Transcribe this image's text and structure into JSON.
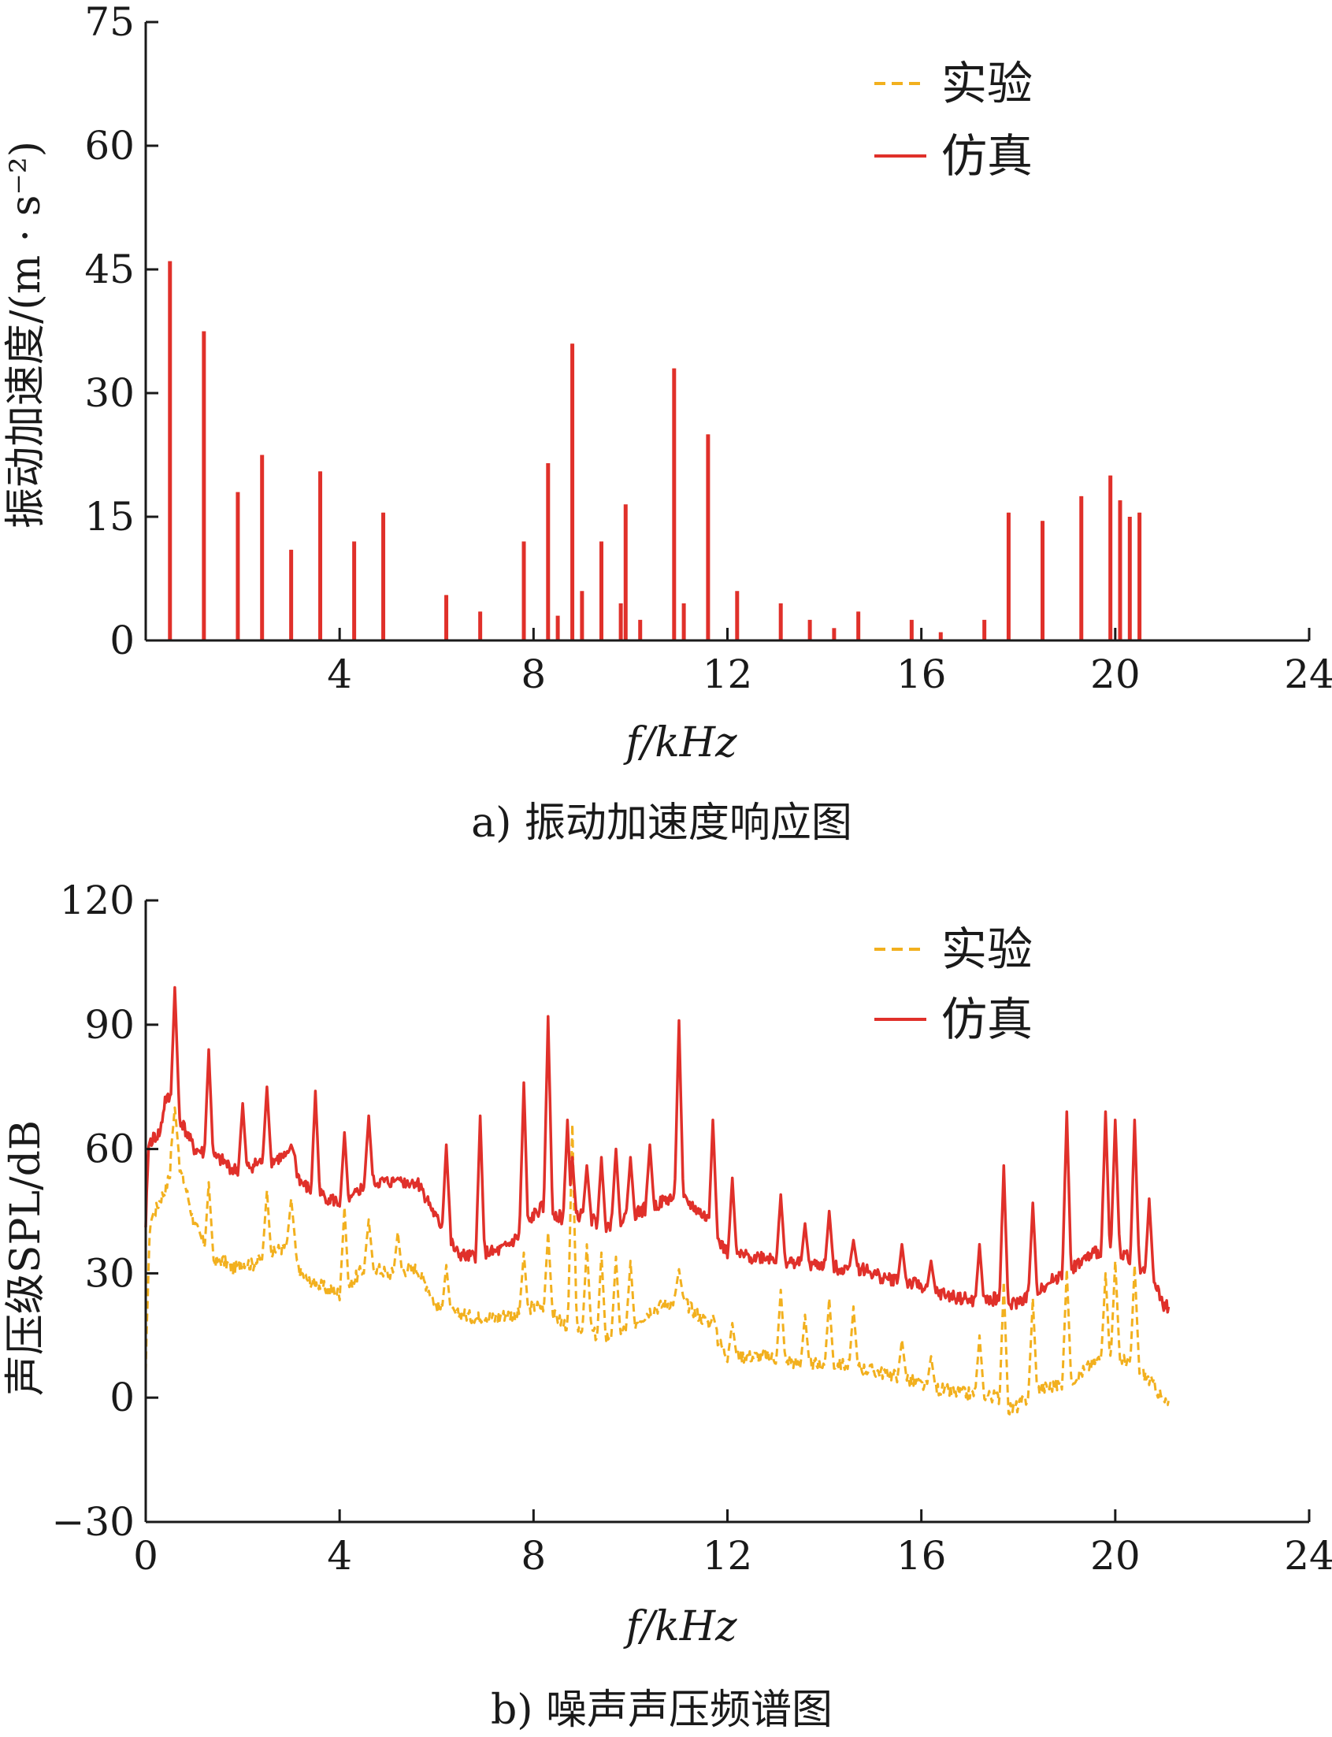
{
  "chart_data": [
    {
      "type": "line",
      "caption": "a) 振动加速度响应图",
      "title": "",
      "xlabel": "f/kHz",
      "ylabel": "振动加速度/(m · s⁻²)",
      "xlim": [
        0,
        24
      ],
      "ylim": [
        0,
        75
      ],
      "xticks": [
        4,
        8,
        12,
        16,
        20,
        24
      ],
      "yticks": [
        0,
        15,
        30,
        45,
        60,
        75
      ],
      "grid": false,
      "legend_position": "top-right",
      "colors": {
        "experiment": "#f2b01e",
        "simulation": "#e0302a"
      },
      "series": [
        {
          "name": "实验",
          "style": "dashed",
          "peaks_x": [
            0.5,
            1.2,
            1.9,
            2.4,
            3.0,
            3.6,
            4.3,
            4.9,
            6.2,
            6.9,
            7.8,
            8.3,
            8.5,
            8.8,
            9.0,
            9.4,
            9.8,
            9.9,
            10.2,
            10.9,
            11.1,
            11.6,
            12.2,
            13.1,
            13.7,
            14.2,
            14.7,
            15.8,
            16.4,
            17.3,
            17.8,
            18.5,
            19.3,
            19.9,
            20.1,
            20.3,
            20.5
          ],
          "peaks_y": [
            46,
            37.5,
            18,
            22.5,
            11,
            20.5,
            12,
            15.5,
            5.5,
            3.5,
            12,
            21.5,
            3,
            36,
            6,
            12,
            4.5,
            16.5,
            2.5,
            33,
            4.5,
            25,
            6,
            4.5,
            2.5,
            1.5,
            3.5,
            2.5,
            1,
            2.5,
            15.5,
            14.5,
            17.5,
            20,
            17,
            15,
            15.5
          ]
        },
        {
          "name": "仿真",
          "style": "solid",
          "peaks_x": [
            0.5,
            1.2,
            1.9,
            2.4,
            3.0,
            3.6,
            4.3,
            4.9,
            6.2,
            6.9,
            7.8,
            8.3,
            8.5,
            8.8,
            9.0,
            9.4,
            9.8,
            9.9,
            10.2,
            10.9,
            11.1,
            11.6,
            12.2,
            13.1,
            13.7,
            14.2,
            14.7,
            15.8,
            16.4,
            17.3,
            17.8,
            18.5,
            19.3,
            19.9,
            20.1,
            20.3,
            20.5
          ],
          "peaks_y": [
            46,
            37.5,
            18,
            22.5,
            11,
            20.5,
            12,
            15.5,
            5.5,
            3.5,
            12,
            21.5,
            3,
            36,
            6,
            12,
            4.5,
            16.5,
            2.5,
            33,
            4.5,
            25,
            6,
            4.5,
            2.5,
            1.5,
            3.5,
            2.5,
            1,
            2.5,
            15.5,
            14.5,
            17.5,
            20,
            17,
            15,
            15.5
          ]
        }
      ]
    },
    {
      "type": "line",
      "caption": "b) 噪声声压频谱图",
      "title": "",
      "xlabel": "f/kHz",
      "ylabel": "声压级SPL/dB",
      "xlim": [
        0,
        24
      ],
      "ylim": [
        -30,
        120
      ],
      "xticks": [
        0,
        4,
        8,
        12,
        16,
        20,
        24
      ],
      "yticks": [
        -30,
        0,
        30,
        60,
        90,
        120
      ],
      "grid": false,
      "legend_position": "top-right",
      "colors": {
        "experiment": "#f2b01e",
        "simulation": "#e0302a"
      },
      "series": [
        {
          "name": "实验",
          "style": "dashed",
          "x": [
            0,
            0.05,
            0.1,
            0.2,
            0.3,
            0.4,
            0.5,
            0.6,
            0.8,
            1.0,
            1.2,
            1.4,
            1.6,
            1.8,
            2.0,
            2.2,
            2.4,
            2.6,
            2.8,
            3.0,
            3.2,
            3.4,
            3.6,
            3.8,
            4.0,
            4.2,
            4.4,
            4.6,
            4.8,
            5.0,
            5.2,
            5.4,
            5.6,
            5.8,
            6.0,
            6.2,
            6.4,
            6.6,
            6.8,
            7.0,
            7.2,
            7.4,
            7.6,
            7.8,
            8.0,
            8.2,
            8.4,
            8.6,
            8.8,
            9.0,
            9.2,
            9.4,
            9.6,
            9.8,
            10.0,
            10.2,
            10.4,
            10.6,
            10.8,
            11.0,
            11.2,
            11.4,
            11.6,
            11.8,
            12.0,
            12.4,
            12.8,
            13.2,
            13.6,
            14.0,
            14.4,
            14.8,
            15.2,
            15.6,
            16.0,
            16.4,
            16.8,
            17.2,
            17.6,
            17.8,
            18.0,
            18.4,
            18.8,
            19.2,
            19.6,
            20.0,
            20.4,
            20.8,
            21.0,
            21.1
          ],
          "y": [
            5,
            30,
            43,
            45,
            48,
            50,
            54,
            58,
            52,
            42,
            37,
            33,
            33,
            31,
            33,
            32,
            34,
            35,
            36,
            37,
            30,
            28,
            27,
            26,
            25,
            27,
            30,
            32,
            31,
            30,
            30,
            31,
            31,
            27,
            22,
            21,
            20,
            20,
            19,
            20,
            19,
            20,
            20,
            21,
            22,
            22,
            20,
            18,
            17,
            17,
            16,
            14,
            15,
            16,
            17,
            19,
            21,
            22,
            23,
            24,
            22,
            20,
            18,
            14,
            10,
            10,
            10,
            9,
            8,
            8,
            8,
            7,
            6,
            5,
            3,
            2,
            1,
            1,
            0,
            -3,
            -2,
            2,
            3,
            5,
            9,
            10,
            8,
            3,
            -1,
            -2
          ]
        },
        {
          "name": "仿真",
          "style": "solid",
          "x": [
            0,
            0.05,
            0.1,
            0.2,
            0.3,
            0.4,
            0.5,
            0.6,
            0.8,
            1.0,
            1.2,
            1.4,
            1.6,
            1.8,
            2.0,
            2.2,
            2.4,
            2.6,
            2.8,
            3.0,
            3.2,
            3.4,
            3.6,
            3.8,
            4.0,
            4.2,
            4.4,
            4.6,
            4.8,
            5.0,
            5.2,
            5.4,
            5.6,
            5.8,
            6.0,
            6.2,
            6.4,
            6.6,
            6.8,
            7.0,
            7.2,
            7.4,
            7.6,
            7.8,
            8.0,
            8.2,
            8.4,
            8.6,
            8.8,
            9.0,
            9.2,
            9.4,
            9.6,
            9.8,
            10.0,
            10.2,
            10.4,
            10.6,
            10.8,
            11.0,
            11.2,
            11.4,
            11.6,
            11.8,
            12.0,
            12.4,
            12.8,
            13.2,
            13.6,
            14.0,
            14.4,
            14.8,
            15.2,
            15.6,
            16.0,
            16.4,
            16.8,
            17.2,
            17.6,
            17.8,
            18.0,
            18.4,
            18.8,
            19.2,
            19.6,
            20.0,
            20.4,
            20.8,
            21.0,
            21.1
          ],
          "y": [
            40,
            60,
            62,
            63,
            64,
            72,
            72,
            70,
            65,
            60,
            59,
            58,
            57,
            55,
            55,
            56,
            57,
            57,
            58,
            58,
            52,
            50,
            49,
            48,
            47,
            47,
            50,
            52,
            52,
            52,
            52,
            52,
            52,
            48,
            43,
            40,
            35,
            34,
            34,
            35,
            35,
            36,
            38,
            40,
            44,
            46,
            45,
            43,
            43,
            44,
            43,
            41,
            42,
            43,
            44,
            45,
            46,
            47,
            48,
            48,
            47,
            45,
            43,
            38,
            35,
            34,
            34,
            33,
            32,
            32,
            31,
            31,
            29,
            28,
            27,
            25,
            24,
            23,
            24,
            22,
            23,
            26,
            29,
            32,
            35,
            36,
            33,
            28,
            22,
            22
          ]
        }
      ],
      "simulation_spikes": {
        "x": [
          0.6,
          1.3,
          2.0,
          2.5,
          3.0,
          3.5,
          4.1,
          4.6,
          5.2,
          5.6,
          6.2,
          6.9,
          7.8,
          8.3,
          8.7,
          8.8,
          9.1,
          9.4,
          9.7,
          10.0,
          10.4,
          11.0,
          11.7,
          12.1,
          13.1,
          13.6,
          14.1,
          14.6,
          15.6,
          16.2,
          17.2,
          17.7,
          18.3,
          19.0,
          19.8,
          20.0,
          20.4,
          20.7
        ],
        "y": [
          99,
          84,
          71,
          75,
          61,
          74,
          64,
          68,
          53,
          48,
          61,
          68,
          76,
          92,
          67,
          58,
          56,
          58,
          60,
          58,
          61,
          91,
          67,
          53,
          49,
          42,
          45,
          38,
          37,
          33,
          37,
          56,
          47,
          69,
          69,
          67,
          67,
          48
        ]
      },
      "experiment_spikes": {
        "x": [
          0.6,
          1.3,
          2.5,
          3.0,
          4.1,
          4.6,
          5.2,
          6.2,
          7.8,
          8.3,
          8.8,
          9.1,
          9.4,
          9.7,
          10.0,
          11.0,
          11.7,
          12.1,
          13.1,
          13.6,
          14.1,
          14.6,
          15.6,
          16.2,
          17.2,
          17.7,
          18.3,
          19.0,
          19.8,
          20.0,
          20.4
        ],
        "y": [
          70,
          52,
          50,
          48,
          46,
          43,
          40,
          32,
          35,
          40,
          66,
          37,
          35,
          34,
          33,
          31,
          20,
          18,
          26,
          20,
          24,
          22,
          14,
          10,
          15,
          28,
          24,
          31,
          30,
          33,
          32
        ]
      }
    }
  ]
}
